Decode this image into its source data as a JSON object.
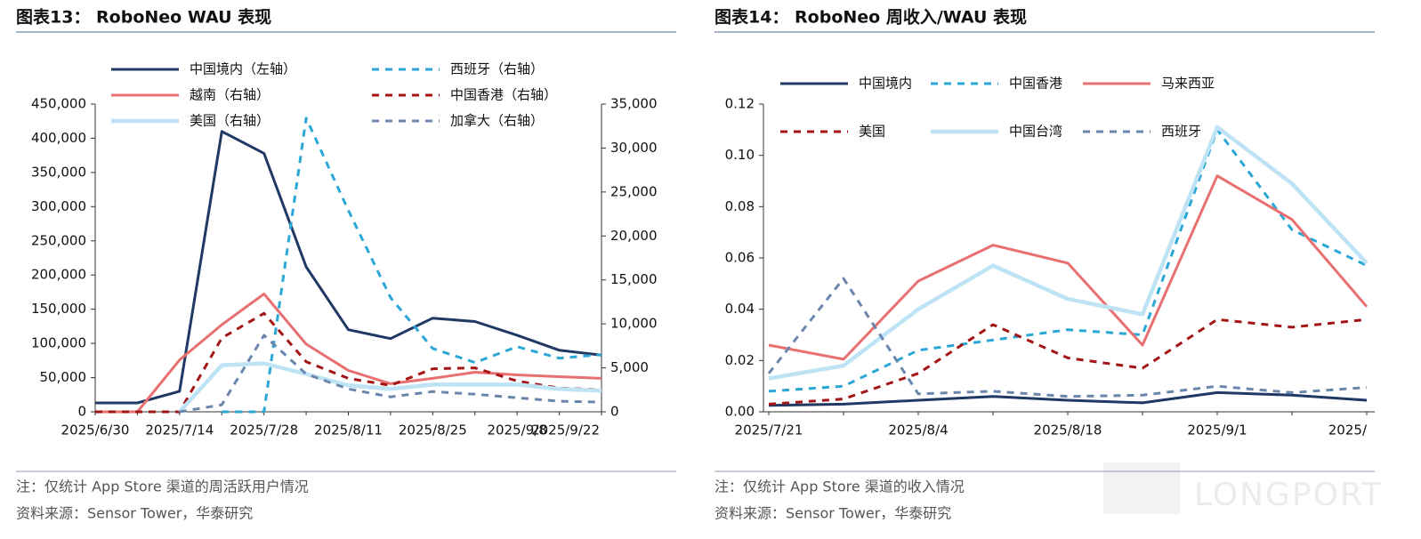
{
  "chart_data": [
    {
      "type": "line",
      "title": "图表13： RoboNeo WAU 表现",
      "note": "注：仅统计 App Store 渠道的周活跃用户情况",
      "source": "资料来源：Sensor Tower，华泰研究",
      "categories": [
        "2025/6/30",
        null,
        "2025/7/14",
        null,
        "2025/7/28",
        null,
        "2025/8/11",
        null,
        "2025/8/25",
        null,
        "2025/9/8",
        null,
        "2025/9/22"
      ],
      "ylim": [
        0,
        450000
      ],
      "yticks": [
        0,
        {
          "value": 50000,
          "label": "50,000"
        },
        {
          "value": 100000,
          "label": "100,000"
        },
        {
          "value": 150000,
          "label": "150,000"
        },
        {
          "value": 200000,
          "label": "200,000"
        },
        {
          "value": 250000,
          "label": "250,000"
        },
        {
          "value": 300000,
          "label": "300,000"
        },
        {
          "value": 350000,
          "label": "350,000"
        },
        {
          "value": 400000,
          "label": "400,000"
        },
        {
          "value": 450000,
          "label": "450,000"
        }
      ],
      "y2lim": [
        0,
        35000
      ],
      "y2ticks": [
        0,
        {
          "value": 5000,
          "label": "5,000"
        },
        {
          "value": 10000,
          "label": "10,000"
        },
        {
          "value": 15000,
          "label": "15,000"
        },
        {
          "value": 20000,
          "label": "20,000"
        },
        {
          "value": 25000,
          "label": "25,000"
        },
        {
          "value": 30000,
          "label": "30,000"
        },
        {
          "value": 35000,
          "label": "35,000"
        }
      ],
      "legend_columns": 2,
      "series": [
        {
          "name": "中国境内（左轴）",
          "color": "#1f3864",
          "style": "solid",
          "values": [
            13000,
            13000,
            30000,
            410000,
            378000,
            212000,
            120000,
            107000,
            137000,
            132000,
            112000,
            90000,
            83000
          ]
        },
        {
          "name": "西班牙（右轴）",
          "color": "#2aa7d5",
          "style": "dashed",
          "axis": "y2",
          "values": [
            null,
            null,
            null,
            0,
            0,
            33400,
            22900,
            13000,
            7200,
            5600,
            7400,
            6100,
            6500
          ]
        },
        {
          "name": "越南（右轴）",
          "color": "#e87070",
          "style": "solid",
          "axis": "y2",
          "values": [
            0,
            0,
            5900,
            9900,
            13400,
            7700,
            4700,
            3200,
            3800,
            4500,
            4200,
            4000,
            3800
          ]
        },
        {
          "name": "中国香港（右轴）",
          "color": "#a31515",
          "style": "dashed",
          "axis": "y2",
          "values": [
            0,
            0,
            0,
            8400,
            11200,
            5700,
            3800,
            3000,
            4900,
            5000,
            3500,
            2700,
            2500
          ]
        },
        {
          "name": "美国（右轴）",
          "color": "#bde3f5",
          "style": "solid",
          "axis": "y2",
          "values": [
            null,
            null,
            0,
            5300,
            5500,
            4300,
            3000,
            2600,
            3100,
            3100,
            3100,
            2600,
            2400
          ]
        },
        {
          "name": "加拿大（右轴）",
          "color": "#6a86ad",
          "style": "dashed",
          "axis": "y2",
          "values": [
            null,
            null,
            0,
            800,
            8700,
            4300,
            2600,
            1700,
            2300,
            2000,
            1600,
            1200,
            1100
          ]
        }
      ]
    },
    {
      "type": "line",
      "title": "图表14： RoboNeo 周收入/WAU 表现",
      "note": "注：仅统计 App Store 渠道的收入情况",
      "source": "资料来源：Sensor Tower，华泰研究",
      "categories": [
        "2025/7/21",
        null,
        "2025/8/4",
        null,
        "2025/8/18",
        null,
        "2025/9/1",
        null,
        "2025/"
      ],
      "ylim": [
        0,
        0.12
      ],
      "yticks": [
        {
          "value": 0,
          "label": "0.00"
        },
        0.02,
        0.04,
        0.06,
        0.08,
        {
          "value": 0.1,
          "label": "0.10"
        },
        0.12
      ],
      "legend_columns": 3,
      "series": [
        {
          "name": "中国境内",
          "color": "#1f3864",
          "style": "solid",
          "values": [
            0.0025,
            0.003,
            0.0045,
            0.006,
            0.0045,
            0.0035,
            0.0075,
            0.0065,
            0.0045
          ]
        },
        {
          "name": "中国香港",
          "color": "#2aa7d5",
          "style": "dashed",
          "values": [
            0.008,
            0.01,
            0.024,
            0.028,
            0.032,
            0.03,
            0.11,
            0.071,
            0.057
          ]
        },
        {
          "name": "马来西亚",
          "color": "#e87070",
          "style": "solid",
          "values": [
            0.026,
            0.0205,
            0.051,
            0.065,
            0.058,
            0.026,
            0.092,
            0.075,
            0.041
          ]
        },
        {
          "name": "美国",
          "color": "#a31515",
          "style": "dashed",
          "values": [
            0.003,
            0.005,
            0.015,
            0.034,
            0.021,
            0.017,
            0.036,
            0.033,
            0.036
          ]
        },
        {
          "name": "中国台湾",
          "color": "#bde3f5",
          "style": "solid",
          "values": [
            0.013,
            0.018,
            0.04,
            0.057,
            0.044,
            0.038,
            0.111,
            0.089,
            0.058
          ]
        },
        {
          "name": "西班牙",
          "color": "#6a86ad",
          "style": "dashed",
          "values": [
            0.015,
            0.052,
            0.007,
            0.008,
            0.006,
            0.0065,
            0.01,
            0.0075,
            0.0095
          ]
        }
      ]
    }
  ],
  "watermark": "LONGPORT"
}
